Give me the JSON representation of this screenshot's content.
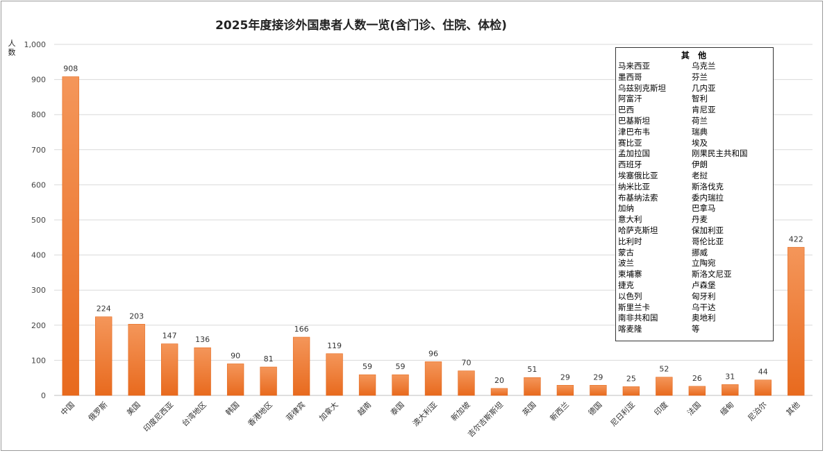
{
  "chart_data": {
    "type": "bar",
    "title": "2025年度接诊外国患者人数一览(含门诊、住院、体检)",
    "ylabel": "人数",
    "xlabel": "",
    "ylim": [
      0,
      1000
    ],
    "yticks": [
      "0",
      "100",
      "200",
      "300",
      "400",
      "500",
      "600",
      "700",
      "800",
      "900",
      "1,000"
    ],
    "grid": true,
    "bar_color": "#ED7D31",
    "categories": [
      "中国",
      "俄罗斯",
      "美国",
      "印度尼西亚",
      "台湾地区",
      "韩国",
      "香港地区",
      "菲律宾",
      "加拿大",
      "越南",
      "泰国",
      "澳大利亚",
      "新加坡",
      "吉尔吉斯斯坦",
      "英国",
      "新西兰",
      "德国",
      "尼日利亚",
      "印度",
      "法国",
      "缅甸",
      "尼泊尔",
      "其他"
    ],
    "values": [
      908,
      224,
      203,
      147,
      136,
      90,
      81,
      166,
      119,
      59,
      59,
      96,
      70,
      20,
      51,
      29,
      29,
      25,
      52,
      26,
      31,
      44,
      422
    ]
  },
  "others_box": {
    "title": "其 他",
    "col1": [
      "马来西亚",
      "墨西哥",
      "乌兹别克斯坦",
      "阿富汗",
      "巴西",
      "巴基斯坦",
      "津巴布韦",
      "赛比亚",
      "孟加拉国",
      "西班牙",
      "埃塞俄比亚",
      "纳米比亚",
      "布基纳法索",
      "加纳",
      "意大利",
      "哈萨克斯坦",
      "比利时",
      "蒙古",
      "波兰",
      "柬埔寨",
      "捷克",
      "以色列",
      "斯里兰卡",
      "南非共和国",
      "喀麦隆"
    ],
    "col2": [
      "乌克兰",
      "芬兰",
      "几内亚",
      "智利",
      "肯尼亚",
      "荷兰",
      "瑞典",
      "埃及",
      "刚果民主共和国",
      "伊朗",
      "老挝",
      "斯洛伐克",
      "委内瑞拉",
      "巴拿马",
      "丹麦",
      "保加利亚",
      "哥伦比亚",
      "挪威",
      "立陶宛",
      "斯洛文尼亚",
      "卢森堡",
      "匈牙利",
      "乌干达",
      "奥地利",
      "等"
    ]
  }
}
